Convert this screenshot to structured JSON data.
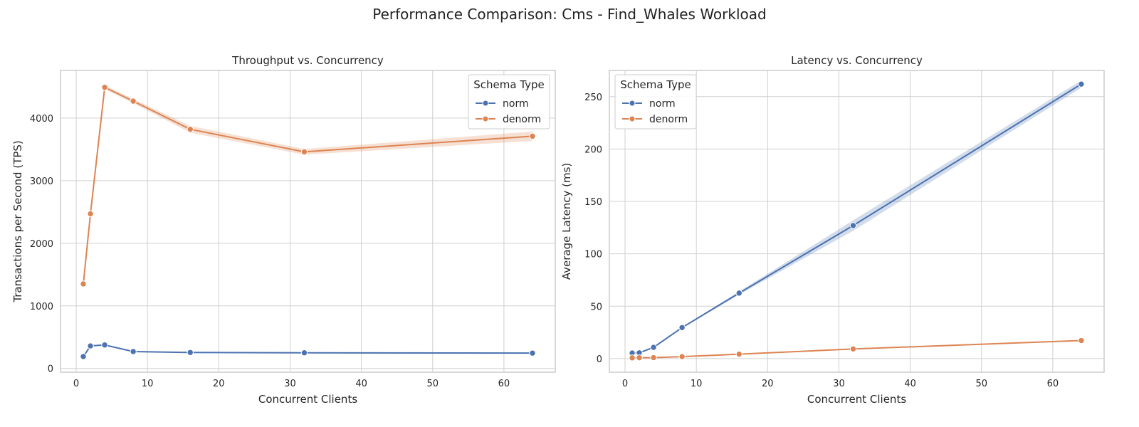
{
  "suptitle": "Performance Comparison: Cms - Find_Whales Workload",
  "colors": {
    "norm": "#4c72b0",
    "denorm": "#dd8452",
    "grid": "#d0d0d0",
    "axes": "#cccccc"
  },
  "chart_data": [
    {
      "type": "line",
      "title": "Throughput vs. Concurrency",
      "xlabel": "Concurrent Clients",
      "ylabel": "Transactions per Second (TPS)",
      "xlim": [
        -2.2,
        67.2
      ],
      "ylim": [
        -60,
        4760
      ],
      "xticks": [
        0,
        10,
        20,
        30,
        40,
        50,
        60
      ],
      "yticks": [
        0,
        1000,
        2000,
        3000,
        4000
      ],
      "grid": true,
      "legend": {
        "title": "Schema Type",
        "position": "top-right"
      },
      "x": [
        1,
        2,
        4,
        8,
        16,
        32,
        64
      ],
      "series": [
        {
          "name": "norm",
          "values": [
            190,
            360,
            375,
            270,
            255,
            250,
            245
          ],
          "band": [
            6,
            10,
            12,
            10,
            8,
            8,
            8
          ]
        },
        {
          "name": "denorm",
          "values": [
            1350,
            2470,
            4490,
            4270,
            3820,
            3460,
            3710
          ],
          "band": [
            15,
            25,
            30,
            35,
            55,
            45,
            75
          ]
        }
      ]
    },
    {
      "type": "line",
      "title": "Latency vs. Concurrency",
      "xlabel": "Concurrent Clients",
      "ylabel": "Average Latency (ms)",
      "xlim": [
        -2.2,
        67.2
      ],
      "ylim": [
        -13,
        275
      ],
      "xticks": [
        0,
        10,
        20,
        30,
        40,
        50,
        60
      ],
      "yticks": [
        0,
        50,
        100,
        150,
        200,
        250
      ],
      "grid": true,
      "legend": {
        "title": "Schema Type",
        "position": "top-left"
      },
      "x": [
        1,
        2,
        4,
        8,
        16,
        32,
        64
      ],
      "series": [
        {
          "name": "norm",
          "values": [
            5.3,
            5.5,
            10.7,
            29.6,
            62.5,
            127,
            262
          ],
          "band": [
            0.2,
            0.3,
            0.5,
            0.6,
            1.5,
            5,
            3.5
          ]
        },
        {
          "name": "denorm",
          "values": [
            0.7,
            0.8,
            0.9,
            1.9,
            4.2,
            9.2,
            17.2
          ],
          "band": [
            0.1,
            0.1,
            0.1,
            0.2,
            0.2,
            0.3,
            0.5
          ]
        }
      ]
    }
  ]
}
